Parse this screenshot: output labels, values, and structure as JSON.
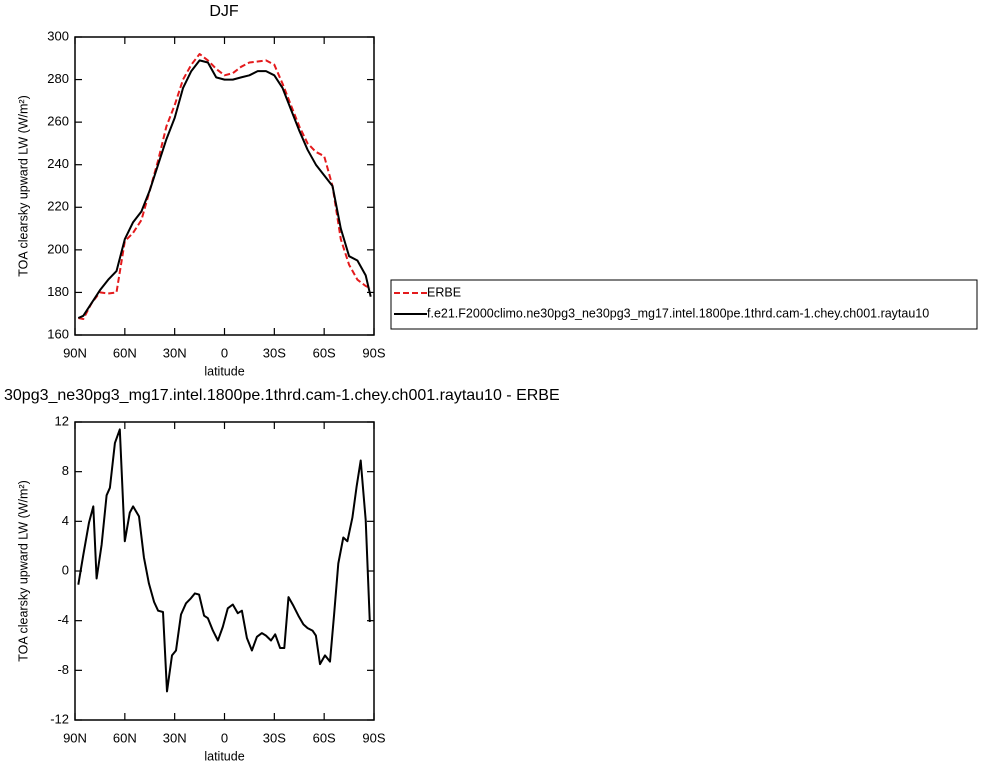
{
  "chart_data": [
    {
      "type": "line",
      "title": "DJF",
      "xlabel": "latitude",
      "ylabel": "TOA clearsky upward LW (W/m²)",
      "x": [
        88,
        85,
        80,
        75,
        70,
        65,
        60,
        55,
        50,
        45,
        40,
        35,
        30,
        25,
        20,
        15,
        10,
        5,
        0,
        -5,
        -10,
        -15,
        -20,
        -25,
        -30,
        -35,
        -40,
        -45,
        -50,
        -55,
        -60,
        -65,
        -70,
        -75,
        -80,
        -85,
        -88
      ],
      "series": [
        {
          "name": "ERBE",
          "color": "#e41a1c",
          "linestyle": "dashed",
          "values": [
            168,
            167.5,
            175,
            180,
            179.5,
            180,
            204,
            208,
            214,
            228,
            242,
            258,
            268,
            280,
            287,
            292,
            289,
            285,
            282,
            283,
            286,
            288,
            288.5,
            289,
            287,
            278,
            268,
            258,
            250,
            246,
            244,
            230,
            205,
            193,
            186,
            183,
            182
          ]
        },
        {
          "name": "f.e21.F2000climo.ne30pg3_ne30pg3_mg17.intel.1800pe.1thrd.cam-1.chey.ch001.raytau10",
          "color": "#000000",
          "linestyle": "solid",
          "values": [
            168,
            169,
            175,
            181,
            186,
            190,
            205,
            213,
            218,
            228,
            240,
            252,
            262,
            276,
            284,
            289,
            288,
            281,
            280,
            280,
            281,
            282,
            284,
            284,
            282,
            276,
            266,
            256,
            247,
            240,
            235,
            230,
            210,
            197,
            195,
            188,
            178
          ]
        }
      ],
      "xlim": [
        90,
        -90
      ],
      "xticks": [
        {
          "value": 90,
          "label": "90N"
        },
        {
          "value": 60,
          "label": "60N"
        },
        {
          "value": 30,
          "label": "30N"
        },
        0,
        {
          "value": -30,
          "label": "30S"
        },
        {
          "value": -60,
          "label": "60S"
        },
        {
          "value": -90,
          "label": "90S"
        }
      ],
      "ylim": [
        160,
        300
      ],
      "yticks": [
        160,
        180,
        200,
        220,
        240,
        260,
        280,
        300
      ],
      "legend": "right",
      "grid": false
    },
    {
      "type": "line",
      "title": "30pg3_ne30pg3_mg17.intel.1800pe.1thrd.cam-1.chey.ch001.raytau10 - ERBE",
      "xlabel": "latitude",
      "ylabel": "TOA clearsky upward LW (W/m²)",
      "x": [
        88,
        85,
        81.6,
        79,
        77,
        74,
        71,
        69,
        66,
        63,
        60,
        57,
        55,
        51.5,
        48.5,
        45.5,
        42.4,
        40,
        37,
        34.6,
        31.6,
        29.2,
        26.2,
        23.2,
        20.2,
        17.8,
        15.3,
        12.3,
        10,
        7,
        4,
        1,
        -2,
        -5,
        -8,
        -10.5,
        -13.5,
        -16.5,
        -19.5,
        -22.5,
        -25,
        -28,
        -30.5,
        -33.5,
        -36,
        -38.5,
        -41.5,
        -44.5,
        -47.5,
        -50,
        -53,
        -55,
        -57.5,
        -60.5,
        -63.5,
        -66,
        -68.5,
        -71.5,
        -74,
        -77,
        -79.5,
        -82,
        -85,
        -87.5
      ],
      "series": [
        {
          "name": null,
          "color": "#000000",
          "linestyle": "solid",
          "values": [
            -1.1,
            1.3,
            3.9,
            5.2,
            -0.6,
            2.1,
            6.1,
            6.7,
            10.3,
            11.4,
            2.4,
            4.7,
            5.2,
            4.4,
            1.1,
            -1.0,
            -2.5,
            -3.2,
            -3.3,
            -9.7,
            -6.8,
            -6.4,
            -3.5,
            -2.6,
            -2.2,
            -1.8,
            -1.9,
            -3.6,
            -3.8,
            -4.8,
            -5.6,
            -4.5,
            -3.0,
            -2.7,
            -3.4,
            -3.2,
            -5.4,
            -6.4,
            -5.3,
            -5.0,
            -5.2,
            -5.6,
            -5.1,
            -6.2,
            -6.2,
            -2.1,
            -2.8,
            -3.6,
            -4.3,
            -4.6,
            -4.8,
            -5.2,
            -7.5,
            -6.8,
            -7.3,
            -3.5,
            0.6,
            2.7,
            2.4,
            4.3,
            6.8,
            8.9,
            4.1,
            -4.1
          ]
        }
      ],
      "xlim": [
        90,
        -90
      ],
      "xticks": [
        {
          "value": 90,
          "label": "90N"
        },
        {
          "value": 60,
          "label": "60N"
        },
        {
          "value": 30,
          "label": "30N"
        },
        0,
        {
          "value": -30,
          "label": "30S"
        },
        {
          "value": -60,
          "label": "60S"
        },
        {
          "value": -90,
          "label": "90S"
        }
      ],
      "ylim": [
        -12,
        12
      ],
      "yticks": [
        -12,
        -8,
        -4,
        0,
        4,
        8,
        12
      ],
      "grid": false
    }
  ]
}
